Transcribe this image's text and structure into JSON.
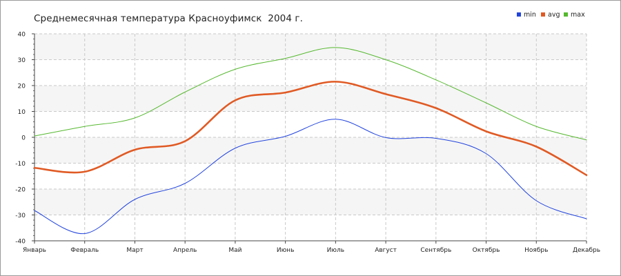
{
  "chart_data": {
    "type": "line",
    "title": "Среднемесячная температура Красноуфимск  2004 г.",
    "categories": [
      "Январь",
      "Февраль",
      "Март",
      "Апрель",
      "Май",
      "Июнь",
      "Июль",
      "Август",
      "Сентябрь",
      "Октябрь",
      "Ноябрь",
      "Декабрь"
    ],
    "ylim": [
      -40,
      40
    ],
    "yticks": [
      -40,
      -30,
      -20,
      -10,
      0,
      10,
      20,
      30,
      40
    ],
    "grid": true,
    "legend_position": "top-right",
    "series": [
      {
        "name": "min",
        "color": "#2244dd",
        "width": 1,
        "values": [
          -28.3,
          -37.2,
          -24.0,
          -17.8,
          -4.2,
          0.4,
          7.0,
          -0.1,
          -0.4,
          -6.3,
          -24.5,
          -31.5
        ]
      },
      {
        "name": "avg",
        "color": "#e05a24",
        "width": 2.6,
        "values": [
          -11.8,
          -13.3,
          -4.8,
          -1.5,
          14.3,
          17.3,
          21.5,
          16.7,
          11.3,
          2.3,
          -3.6,
          -14.6
        ]
      },
      {
        "name": "max",
        "color": "#55b82e",
        "width": 1,
        "values": [
          0.5,
          4.2,
          7.5,
          17.5,
          26.3,
          30.5,
          34.7,
          30.0,
          22.2,
          13.3,
          4.2,
          -1.0
        ]
      }
    ]
  }
}
